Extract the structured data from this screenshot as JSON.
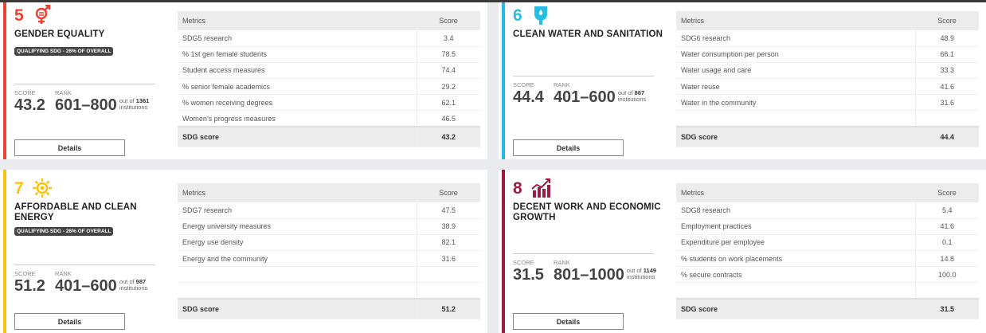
{
  "table_headers": {
    "metrics": "Metrics",
    "score": "Score"
  },
  "labels": {
    "score": "SCORE",
    "rank": "RANK",
    "out_of": "out of",
    "institutions": "institutions",
    "details": "Details",
    "sdg_score": "SDG score"
  },
  "cards": [
    {
      "number": "5",
      "title": "GENDER EQUALITY",
      "icon": "gender-equality-icon",
      "color": "#f0402f",
      "badge": "QUALIFYING SDG - 26% OF OVERALL",
      "score": "43.2",
      "rank": "601–800",
      "total": "1361",
      "metrics": [
        [
          "SDG5 research",
          "3.4"
        ],
        [
          "% 1st gen female students",
          "78.5"
        ],
        [
          "Student access measures",
          "74.4"
        ],
        [
          "% senior female academics",
          "29.2"
        ],
        [
          "% women receiving degrees",
          "62.1"
        ],
        [
          "Women’s progress measures",
          "46.5"
        ]
      ],
      "sdg_score": "43.2"
    },
    {
      "number": "6",
      "title": "CLEAN WATER AND SANITATION",
      "icon": "water-drop-icon",
      "color": "#26bde2",
      "badge": null,
      "score": "44.4",
      "rank": "401–600",
      "total": "867",
      "metrics": [
        [
          "SDG6 research",
          "48.9"
        ],
        [
          "Water consumption per person",
          "66.1"
        ],
        [
          "Water usage and care",
          "33.3"
        ],
        [
          "Water reuse",
          "41.6"
        ],
        [
          "Water in the community",
          "31.6"
        ],
        [
          "",
          ""
        ]
      ],
      "sdg_score": "44.4"
    },
    {
      "number": "7",
      "title": "AFFORDABLE AND CLEAN ENERGY",
      "icon": "sun-icon",
      "color": "#fcc30b",
      "badge": "QUALIFYING SDG - 26% OF OVERALL",
      "score": "51.2",
      "rank": "401–600",
      "total": "987",
      "metrics": [
        [
          "SDG7 research",
          "47.5"
        ],
        [
          "Energy university measures",
          "38.9"
        ],
        [
          "Energy use density",
          "82.1"
        ],
        [
          "Energy and the community",
          "31.6"
        ],
        [
          "",
          ""
        ],
        [
          "",
          ""
        ]
      ],
      "sdg_score": "51.2"
    },
    {
      "number": "8",
      "title": "DECENT WORK AND ECONOMIC GROWTH",
      "icon": "growth-chart-icon",
      "color": "#a21942",
      "badge": null,
      "score": "31.5",
      "rank": "801–1000",
      "total": "1149",
      "metrics": [
        [
          "SDG8 research",
          "5.4"
        ],
        [
          "Employment practices",
          "41.6"
        ],
        [
          "Expenditure per employee",
          "0.1"
        ],
        [
          "% students on work placements",
          "14.8"
        ],
        [
          "% secure contracts",
          "100.0"
        ],
        [
          "",
          ""
        ]
      ],
      "sdg_score": "31.5"
    }
  ]
}
